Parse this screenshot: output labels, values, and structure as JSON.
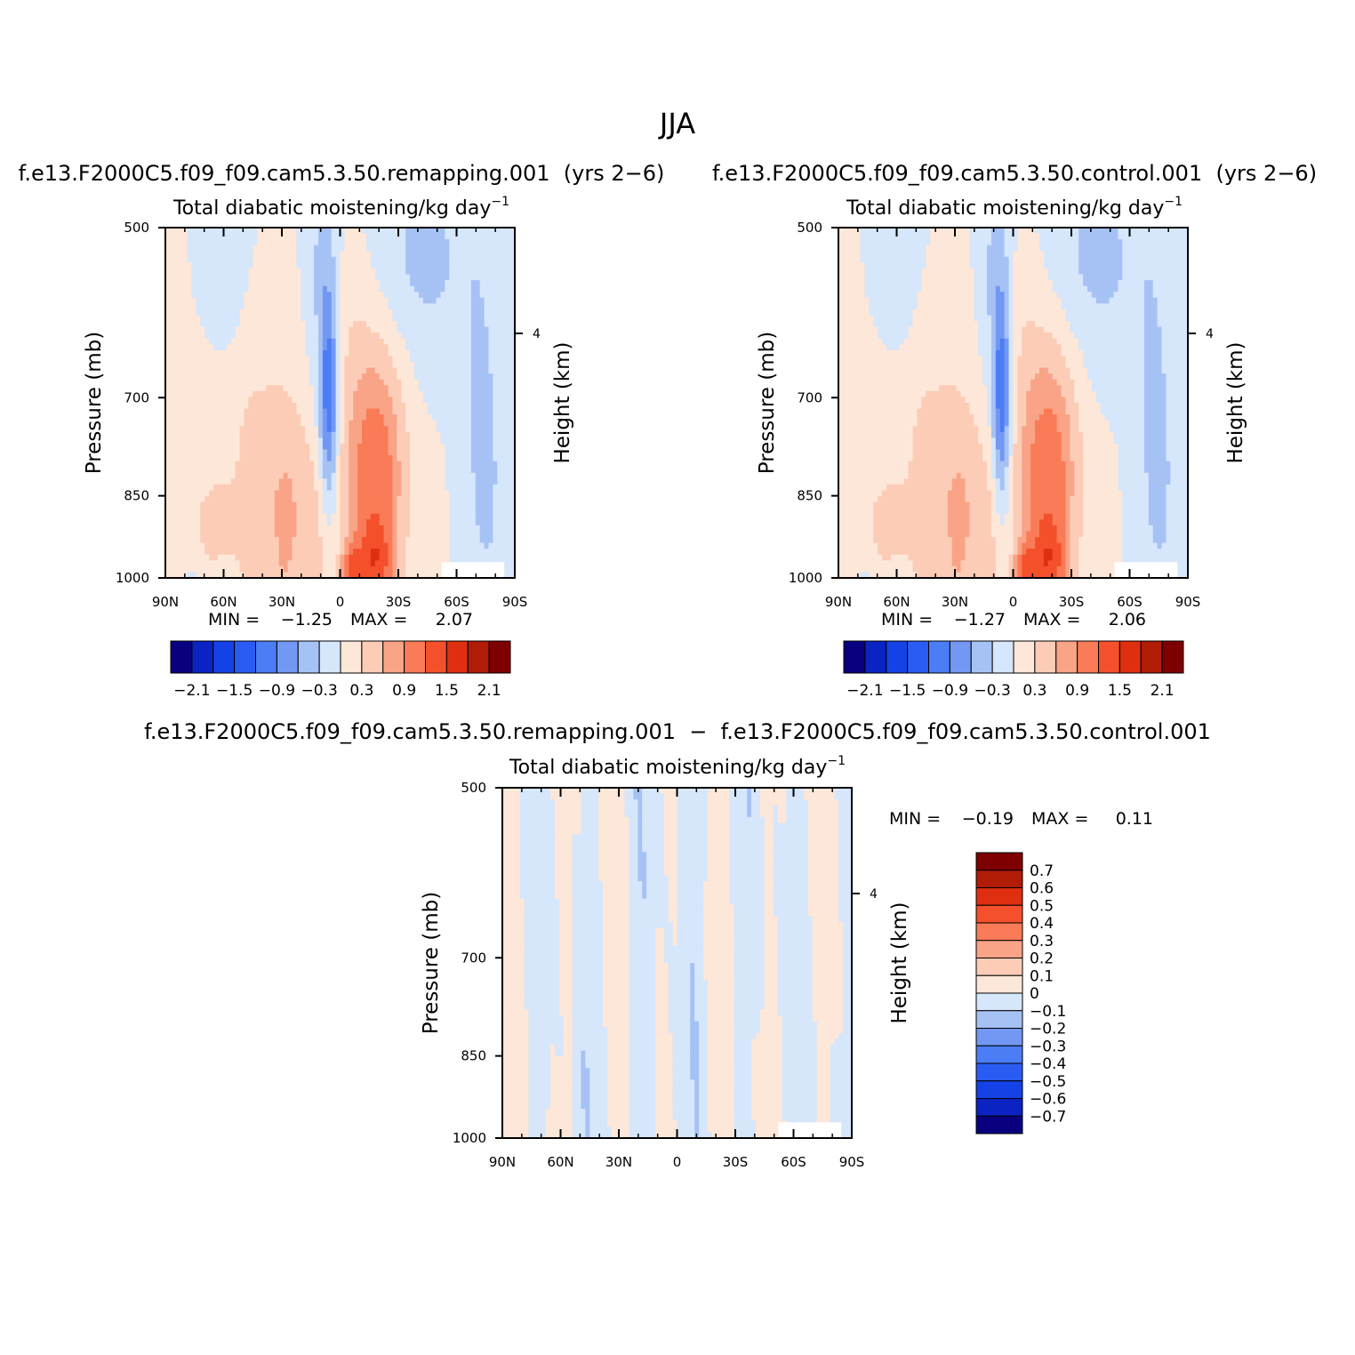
{
  "figure": {
    "season": "JJA"
  },
  "colors": {
    "full_palette": [
      "#08007f",
      "#0a23c2",
      "#1442e6",
      "#2a5cf3",
      "#4b7df5",
      "#7398f3",
      "#a6c2f5",
      "#d6e6fb",
      "#fde7d8",
      "#fcccb6",
      "#f9a387",
      "#f97b57",
      "#f4502b",
      "#de2f10",
      "#b11c07",
      "#7f0000"
    ],
    "diff_palette": [
      "#08007f",
      "#0a23c2",
      "#1442e6",
      "#2a5cf3",
      "#4b7df5",
      "#7398f3",
      "#a6c2f5",
      "#d6e6fb",
      "#fde7d8",
      "#fcccb6",
      "#f9a387",
      "#f97b57",
      "#f4502b",
      "#de2f10",
      "#b11c07",
      "#7f0000"
    ]
  },
  "chart_data": [
    {
      "type": "heatmap",
      "panel": "remapping",
      "header": "f.e13.F2000C5.f09_f09.cam5.3.50.remapping.001  (yrs 2−6)",
      "title": "Total diabatic moistening/kg day",
      "title_sup": "−1",
      "ylabel": "Pressure (mb)",
      "y2label": "Height (km)",
      "x_ticks": [
        "90N",
        "60N",
        "30N",
        "0",
        "30S",
        "60S",
        "90S"
      ],
      "y_ticks": [
        "500",
        "700",
        "850",
        "1000"
      ],
      "y2_ticks": [
        "4"
      ],
      "min_label": "MIN =",
      "min_value": "−1.25",
      "max_label": "MAX =",
      "max_value": "2.07",
      "colorbar_labels": [
        "−2.1",
        "−1.5",
        "−0.9",
        "−0.3",
        "0.3",
        "0.9",
        "1.5",
        "2.1"
      ],
      "contour_levels": [
        -2.1,
        -1.8,
        -1.5,
        -1.2,
        -0.9,
        -0.6,
        -0.3,
        0,
        0.3,
        0.6,
        0.9,
        1.2,
        1.5,
        1.8,
        2.1
      ]
    },
    {
      "type": "heatmap",
      "panel": "control",
      "header": "f.e13.F2000C5.f09_f09.cam5.3.50.control.001  (yrs 2−6)",
      "title": "Total diabatic moistening/kg day",
      "title_sup": "−1",
      "ylabel": "Pressure (mb)",
      "y2label": "Height (km)",
      "x_ticks": [
        "90N",
        "60N",
        "30N",
        "0",
        "30S",
        "60S",
        "90S"
      ],
      "y_ticks": [
        "500",
        "700",
        "850",
        "1000"
      ],
      "y2_ticks": [
        "4"
      ],
      "min_label": "MIN =",
      "min_value": "−1.27",
      "max_label": "MAX =",
      "max_value": "2.06",
      "colorbar_labels": [
        "−2.1",
        "−1.5",
        "−0.9",
        "−0.3",
        "0.3",
        "0.9",
        "1.5",
        "2.1"
      ],
      "contour_levels": [
        -2.1,
        -1.8,
        -1.5,
        -1.2,
        -0.9,
        -0.6,
        -0.3,
        0,
        0.3,
        0.6,
        0.9,
        1.2,
        1.5,
        1.8,
        2.1
      ]
    },
    {
      "type": "heatmap",
      "panel": "difference",
      "header": "f.e13.F2000C5.f09_f09.cam5.3.50.remapping.001  −  f.e13.F2000C5.f09_f09.cam5.3.50.control.001",
      "title": "Total diabatic moistening/kg day",
      "title_sup": "−1",
      "ylabel": "Pressure (mb)",
      "y2label": "Height (km)",
      "x_ticks": [
        "90N",
        "60N",
        "30N",
        "0",
        "30S",
        "60S",
        "90S"
      ],
      "y_ticks": [
        "500",
        "700",
        "850",
        "1000"
      ],
      "y2_ticks": [
        "4"
      ],
      "min_label": "MIN =",
      "min_value": "−0.19",
      "max_label": "MAX =",
      "max_value": "0.11",
      "colorbar_labels": [
        "0.7",
        "0.6",
        "0.5",
        "0.4",
        "0.3",
        "0.2",
        "0.1",
        "0",
        "−0.1",
        "−0.2",
        "−0.3",
        "−0.4",
        "−0.5",
        "−0.6",
        "−0.7"
      ],
      "contour_levels": [
        -0.7,
        -0.6,
        -0.5,
        -0.4,
        -0.3,
        -0.2,
        -0.1,
        0,
        0.1,
        0.2,
        0.3,
        0.4,
        0.5,
        0.6,
        0.7
      ]
    }
  ]
}
